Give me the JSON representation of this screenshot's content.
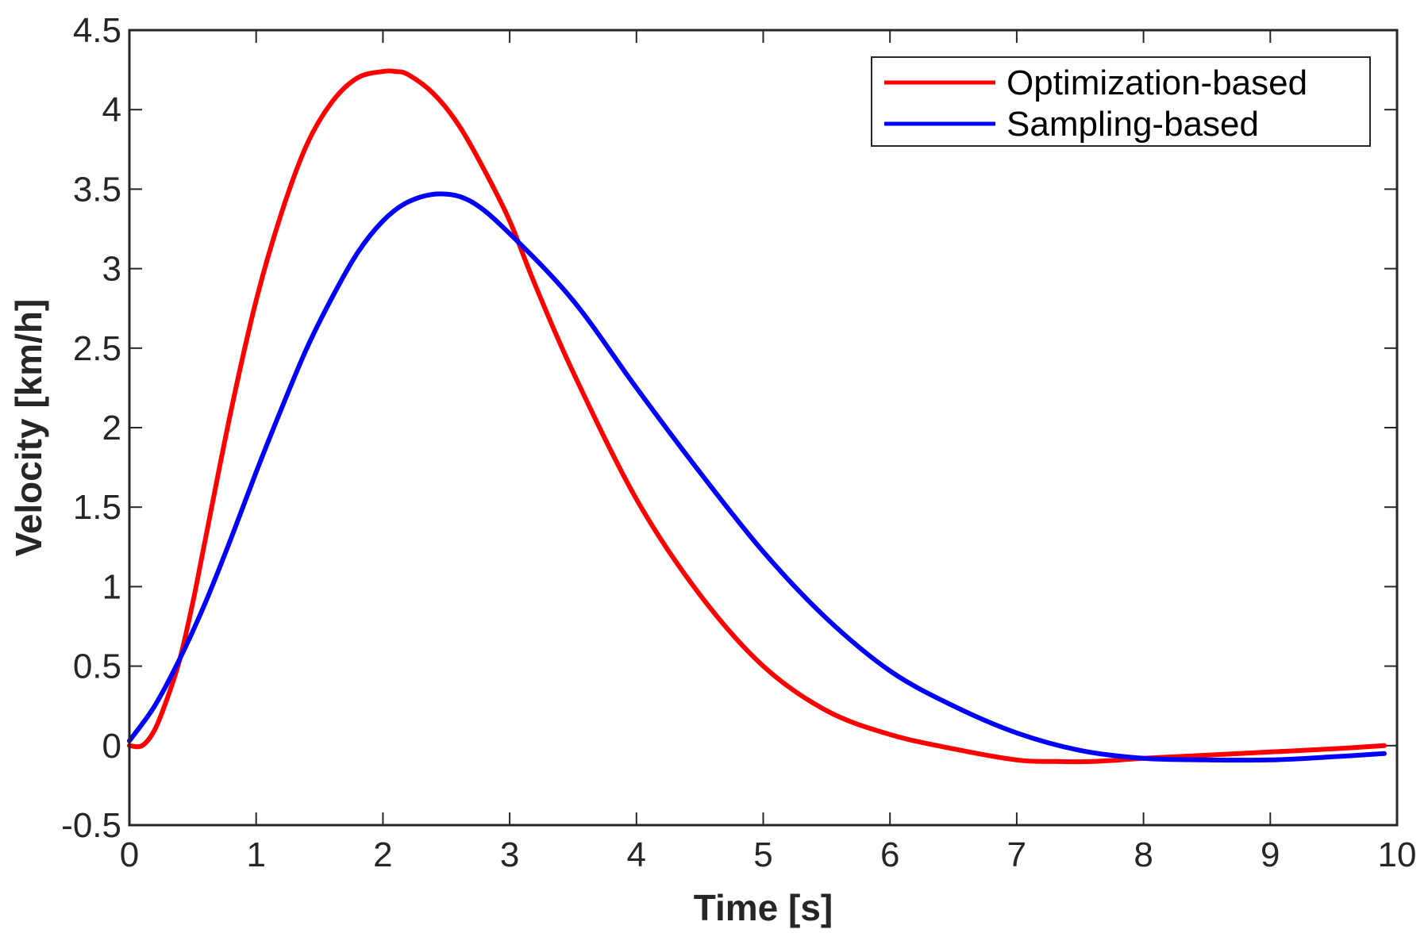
{
  "chart_data": {
    "type": "line",
    "xlabel": "Time [s]",
    "ylabel": "Velocity [km/h]",
    "xlim": [
      0,
      10
    ],
    "ylim": [
      -0.5,
      4.5
    ],
    "xticks": [
      "0",
      "1",
      "2",
      "3",
      "4",
      "5",
      "6",
      "7",
      "8",
      "9",
      "10"
    ],
    "yticks": [
      "-0.5",
      "0",
      "0.5",
      "1",
      "1.5",
      "2",
      "2.5",
      "3",
      "3.5",
      "4",
      "4.5"
    ],
    "grid": false,
    "legend_position": "top-right",
    "series": [
      {
        "name": "Optimization-based",
        "color": "#ff0000",
        "x": [
          0,
          0.1,
          0.2,
          0.3,
          0.4,
          0.5,
          0.6,
          0.8,
          1.0,
          1.2,
          1.4,
          1.6,
          1.8,
          2.0,
          2.1,
          2.2,
          2.4,
          2.6,
          2.8,
          3.0,
          3.2,
          3.5,
          4.0,
          4.5,
          5.0,
          5.5,
          6.0,
          6.5,
          7.0,
          7.3,
          7.6,
          8.0,
          8.5,
          9.0,
          9.5,
          9.9
        ],
        "y": [
          0,
          0,
          0.1,
          0.3,
          0.55,
          0.9,
          1.3,
          2.1,
          2.8,
          3.35,
          3.78,
          4.05,
          4.2,
          4.24,
          4.24,
          4.22,
          4.1,
          3.9,
          3.62,
          3.3,
          2.9,
          2.35,
          1.55,
          0.95,
          0.5,
          0.22,
          0.07,
          -0.02,
          -0.09,
          -0.1,
          -0.1,
          -0.08,
          -0.06,
          -0.04,
          -0.02,
          0.0
        ]
      },
      {
        "name": "Sampling-based",
        "color": "#0000ff",
        "x": [
          0,
          0.2,
          0.4,
          0.6,
          0.8,
          1.0,
          1.2,
          1.4,
          1.6,
          1.8,
          2.0,
          2.2,
          2.45,
          2.7,
          3.0,
          3.5,
          4.0,
          4.5,
          5.0,
          5.5,
          6.0,
          6.5,
          7.0,
          7.5,
          8.0,
          8.5,
          9.0,
          9.5,
          9.9
        ],
        "y": [
          0.03,
          0.25,
          0.55,
          0.9,
          1.3,
          1.72,
          2.12,
          2.5,
          2.82,
          3.1,
          3.3,
          3.42,
          3.47,
          3.42,
          3.22,
          2.8,
          2.25,
          1.72,
          1.22,
          0.8,
          0.47,
          0.25,
          0.08,
          -0.03,
          -0.08,
          -0.09,
          -0.09,
          -0.07,
          -0.05
        ]
      }
    ]
  }
}
